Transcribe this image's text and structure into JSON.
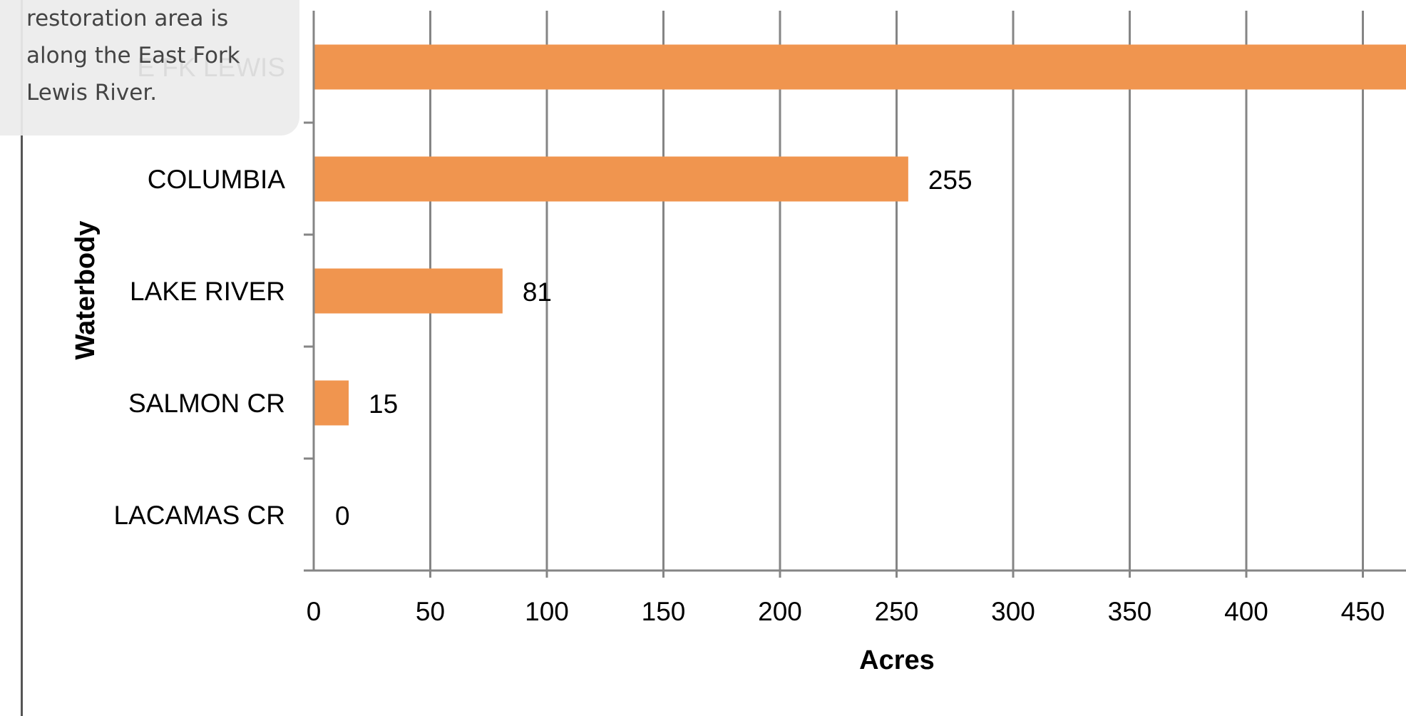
{
  "callout": {
    "lines": [
      "restoration area is",
      "along the East Fork",
      "Lewis River."
    ]
  },
  "chart_data": {
    "type": "bar",
    "orientation": "horizontal",
    "categories": [
      "E FK LEWIS",
      "COLUMBIA",
      "LAKE RIVER",
      "SALMON CR",
      "LACAMAS CR"
    ],
    "values": [
      470,
      255,
      81,
      15,
      0
    ],
    "data_labels": [
      "",
      "255",
      "81",
      "15",
      "0"
    ],
    "xlabel": "Acres",
    "ylabel": "Waterbody",
    "xlim": [
      0,
      470
    ],
    "xticks": [
      0,
      50,
      100,
      150,
      200,
      250,
      300,
      350,
      400,
      450
    ],
    "grid": true,
    "bar_color": "#f0954f"
  }
}
